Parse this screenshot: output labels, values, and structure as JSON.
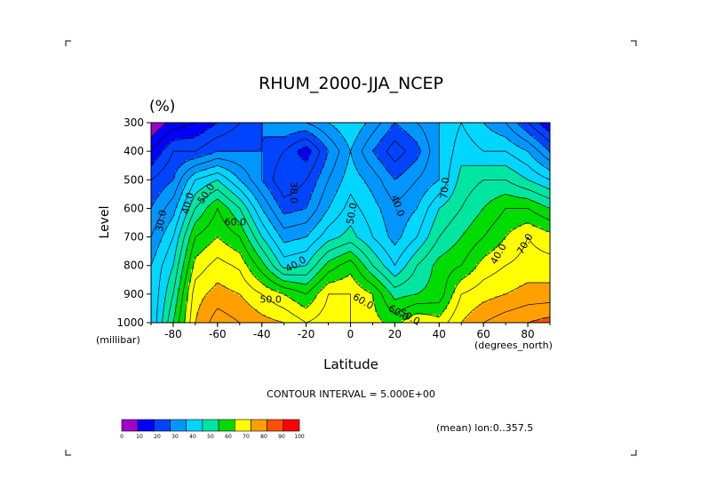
{
  "chart_data": {
    "type": "heatmap",
    "title": "RHUM_2000-JJA_NCEP",
    "units": "(%)",
    "xlabel": "Latitude",
    "xunits": "(degrees_north)",
    "ylabel": "Level",
    "yunits": "(millibar)",
    "xlim": [
      -90,
      90
    ],
    "ylim": [
      1000,
      300
    ],
    "xticks": [
      "-80",
      "-60",
      "-40",
      "-20",
      "0",
      "20",
      "40",
      "60",
      "80"
    ],
    "yticks": [
      "300",
      "400",
      "500",
      "600",
      "700",
      "800",
      "900",
      "1000"
    ],
    "contour_interval_text": "CONTOUR INTERVAL = 5.000E+00",
    "mean_text": "(mean) lon:0..357.5",
    "contour_labels": [
      "30.0",
      "40.0",
      "50.0",
      "60.0",
      "50.0",
      "30.0",
      "40.0",
      "50.0",
      "40.0",
      "50.0",
      "70.0",
      "40.0",
      "60.0",
      "60.0",
      "70.0"
    ],
    "x": [
      -90,
      -80,
      -70,
      -60,
      -50,
      -40,
      -30,
      -20,
      -10,
      0,
      10,
      20,
      30,
      40,
      50,
      60,
      70,
      80,
      90
    ],
    "y": [
      300,
      400,
      500,
      600,
      700,
      800,
      900,
      1000
    ],
    "z": [
      [
        5,
        12,
        15,
        20,
        25,
        30,
        35,
        35,
        40,
        45,
        38,
        30,
        35,
        40,
        45,
        40,
        35,
        25,
        15
      ],
      [
        15,
        25,
        25,
        30,
        30,
        30,
        25,
        17,
        30,
        40,
        30,
        22,
        28,
        40,
        48,
        45,
        45,
        40,
        30
      ],
      [
        25,
        30,
        45,
        50,
        40,
        30,
        20,
        25,
        35,
        43,
        38,
        30,
        35,
        40,
        52,
        55,
        55,
        50,
        45
      ],
      [
        30,
        38,
        55,
        65,
        55,
        40,
        28,
        30,
        40,
        47,
        42,
        36,
        40,
        50,
        55,
        60,
        65,
        65,
        60
      ],
      [
        35,
        45,
        65,
        70,
        65,
        50,
        38,
        40,
        48,
        52,
        45,
        38,
        45,
        55,
        60,
        65,
        70,
        75,
        72
      ],
      [
        40,
        50,
        72,
        77,
        74,
        62,
        48,
        50,
        62,
        68,
        55,
        45,
        55,
        62,
        65,
        72,
        75,
        77,
        77
      ],
      [
        40,
        55,
        78,
        82,
        80,
        75,
        70,
        65,
        75,
        75,
        70,
        58,
        60,
        62,
        75,
        78,
        80,
        82,
        82
      ],
      [
        40,
        60,
        80,
        88,
        85,
        82,
        80,
        75,
        78,
        75,
        72,
        68,
        75,
        72,
        80,
        85,
        88,
        90,
        92
      ]
    ],
    "colorbar": {
      "levels": [
        "0",
        "10",
        "20",
        "30",
        "40",
        "50",
        "60",
        "70",
        "80",
        "90",
        "100"
      ],
      "colors": [
        "#a000c8",
        "#0000ff",
        "#0044ff",
        "#0096ff",
        "#00d6ff",
        "#00e6a0",
        "#00dc00",
        "#ffff00",
        "#ffa000",
        "#ff5000",
        "#ff0000"
      ]
    }
  }
}
